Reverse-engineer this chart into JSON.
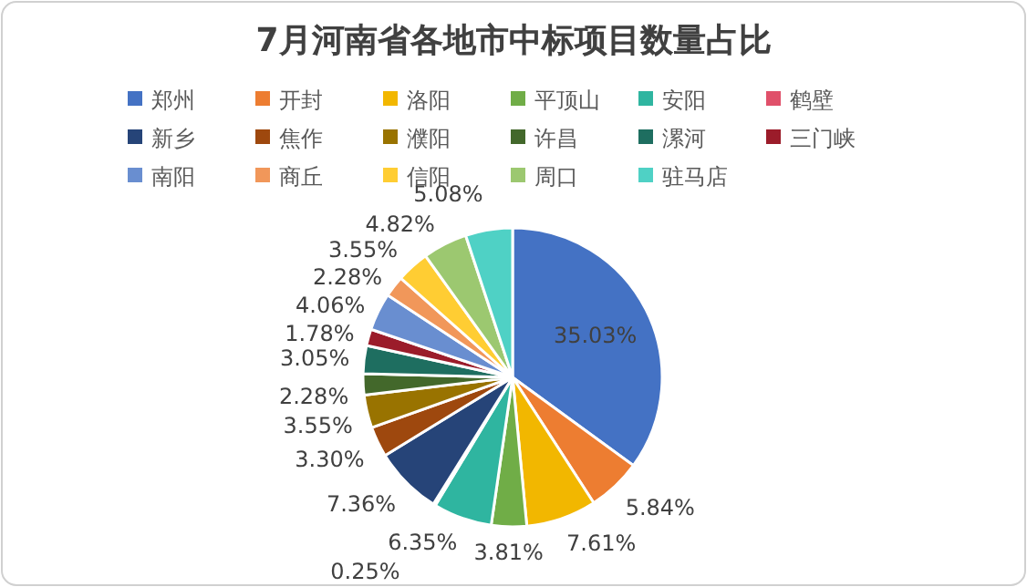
{
  "chart_data": {
    "type": "pie",
    "title": "7月河南省各地市中标项目数量占比",
    "categories": [
      "郑州",
      "开封",
      "洛阳",
      "平顶山",
      "安阳",
      "鹤壁",
      "新乡",
      "焦作",
      "濮阳",
      "许昌",
      "漯河",
      "三门峡",
      "南阳",
      "商丘",
      "信阳",
      "周口",
      "驻马店"
    ],
    "values": [
      35.03,
      5.84,
      7.61,
      3.81,
      6.35,
      0.25,
      7.36,
      3.3,
      3.55,
      2.28,
      3.05,
      1.78,
      4.06,
      2.28,
      3.55,
      4.82,
      5.08
    ],
    "value_labels": [
      "35.03%",
      "5.84%",
      "7.61%",
      "3.81%",
      "6.35%",
      "0.25%",
      "7.36%",
      "3.30%",
      "3.55%",
      "2.28%",
      "3.05%",
      "1.78%",
      "4.06%",
      "2.28%",
      "3.55%",
      "4.82%",
      "5.08%"
    ],
    "colors": [
      "#4472c4",
      "#ed7d31",
      "#f2b700",
      "#70ad47",
      "#2fb5a0",
      "#e0506a",
      "#264478",
      "#9e480e",
      "#997300",
      "#43682b",
      "#1e6e60",
      "#9b1c2a",
      "#698ed0",
      "#f1975a",
      "#ffcd33",
      "#9cc870",
      "#4fd1c5"
    ],
    "legend": "top"
  }
}
